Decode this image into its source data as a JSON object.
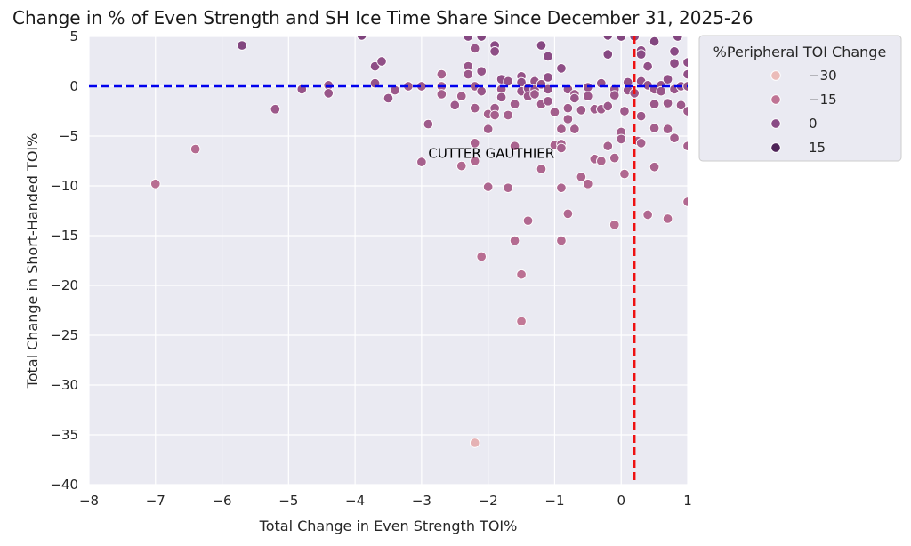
{
  "chart_data": {
    "type": "scatter",
    "title": "Change in % of Even Strength and SH Ice Time Share Since December 31, 2025-26",
    "xlabel": "Total Change in Even Strength TOI%",
    "ylabel": "Total Change in Short-Handed TOI%",
    "xlim": [
      -8,
      1
    ],
    "ylim": [
      -40,
      5
    ],
    "xticks": [
      -8,
      -7,
      -6,
      -5,
      -4,
      -3,
      -2,
      -1,
      0,
      1
    ],
    "yticks": [
      5,
      0,
      -5,
      -10,
      -15,
      -20,
      -25,
      -30,
      -35,
      -40
    ],
    "xtick_labels": [
      "−8",
      "−7",
      "−6",
      "−5",
      "−4",
      "−3",
      "−2",
      "−1",
      "0",
      "1"
    ],
    "ytick_labels": [
      "5",
      "0",
      "−5",
      "−10",
      "−15",
      "−20",
      "−25",
      "−30",
      "−35",
      "−40"
    ],
    "grid": true,
    "hline": {
      "y": 0,
      "color": "#0000ee",
      "style": "dashed"
    },
    "vline": {
      "x": 0.2,
      "color": "#ee1111",
      "style": "dashed"
    },
    "annotation": {
      "text": "CUTTER GAUTHIER",
      "x": -2.9,
      "y": -7.2
    },
    "legend": {
      "title": "%Peripheral TOI Change",
      "placement": "right-outside",
      "entries": [
        {
          "label": "−30",
          "value": -30
        },
        {
          "label": "−15",
          "value": -15
        },
        {
          "label": "0",
          "value": 0
        },
        {
          "label": "15",
          "value": 15
        }
      ]
    },
    "hue_range": [
      -30,
      15
    ],
    "points": [
      [
        -7.0,
        -9.8,
        -13
      ],
      [
        -6.4,
        -6.3,
        -12
      ],
      [
        -5.7,
        4.1,
        2
      ],
      [
        -5.2,
        -2.3,
        -5
      ],
      [
        -4.8,
        -0.3,
        -3
      ],
      [
        -4.4,
        0.1,
        -4
      ],
      [
        -4.4,
        -0.7,
        -4
      ],
      [
        -3.9,
        5.1,
        3
      ],
      [
        -3.7,
        2.0,
        -1
      ],
      [
        -3.6,
        2.5,
        -2
      ],
      [
        -3.7,
        0.3,
        -3
      ],
      [
        -3.5,
        -1.2,
        -4
      ],
      [
        -3.4,
        -0.4,
        -5
      ],
      [
        -3.2,
        0.0,
        -6
      ],
      [
        -3.0,
        0.0,
        -5
      ],
      [
        -2.9,
        -3.8,
        -6
      ],
      [
        -3.0,
        -7.6,
        -8
      ],
      [
        -2.7,
        1.2,
        -8
      ],
      [
        -2.7,
        0.0,
        -9
      ],
      [
        -2.7,
        -0.8,
        -7
      ],
      [
        -2.5,
        -1.9,
        -6
      ],
      [
        -2.4,
        -1.0,
        -7
      ],
      [
        -2.4,
        -8.0,
        -11
      ],
      [
        -2.3,
        5.0,
        1
      ],
      [
        -2.3,
        2.0,
        -4
      ],
      [
        -2.3,
        1.2,
        -5
      ],
      [
        -2.2,
        3.8,
        -4
      ],
      [
        -2.2,
        0.0,
        -6
      ],
      [
        -2.2,
        -2.2,
        -7
      ],
      [
        -2.2,
        -5.7,
        -9
      ],
      [
        -2.2,
        -7.5,
        -11
      ],
      [
        -2.1,
        1.5,
        -3
      ],
      [
        -2.1,
        -0.5,
        -4
      ],
      [
        -2.1,
        5.0,
        2
      ],
      [
        -2.0,
        -2.8,
        -8
      ],
      [
        -2.0,
        -4.3,
        -7
      ],
      [
        -2.0,
        -10.1,
        -10
      ],
      [
        -1.9,
        4.1,
        0
      ],
      [
        -1.9,
        3.5,
        -1
      ],
      [
        -1.9,
        -2.2,
        -6
      ],
      [
        -1.9,
        -2.9,
        -8
      ],
      [
        -1.8,
        0.7,
        -2
      ],
      [
        -1.8,
        -0.3,
        -5
      ],
      [
        -1.8,
        -1.1,
        -4
      ],
      [
        -1.7,
        -2.9,
        -8
      ],
      [
        -1.7,
        -10.2,
        -10
      ],
      [
        -1.7,
        0.5,
        -3
      ],
      [
        -1.6,
        -1.8,
        -7
      ],
      [
        -1.6,
        -6.0,
        -9
      ],
      [
        -1.6,
        -15.5,
        -12
      ],
      [
        -1.5,
        1.0,
        -3
      ],
      [
        -1.5,
        0.4,
        -2
      ],
      [
        -1.5,
        -0.5,
        -4
      ],
      [
        -1.5,
        -18.9,
        -14
      ],
      [
        -1.5,
        -23.6,
        -16
      ],
      [
        -1.4,
        -0.2,
        -2
      ],
      [
        -1.4,
        -1.0,
        -5
      ],
      [
        -1.4,
        -13.5,
        -11
      ],
      [
        -1.3,
        0.5,
        -3
      ],
      [
        -1.3,
        -0.3,
        -4
      ],
      [
        -1.3,
        -0.8,
        -6
      ],
      [
        -1.2,
        4.1,
        1
      ],
      [
        -1.2,
        0.2,
        -4
      ],
      [
        -1.2,
        -1.8,
        -6
      ],
      [
        -1.2,
        -8.3,
        -10
      ],
      [
        -1.1,
        3.0,
        0
      ],
      [
        -1.1,
        0.9,
        -2
      ],
      [
        -1.1,
        -0.3,
        -3
      ],
      [
        -1.1,
        -1.5,
        -5
      ],
      [
        -1.0,
        -2.6,
        -7
      ],
      [
        -1.0,
        -5.9,
        -9
      ],
      [
        -0.9,
        1.8,
        -1
      ],
      [
        -0.9,
        -4.3,
        -7
      ],
      [
        -0.9,
        -5.8,
        -8
      ],
      [
        -0.9,
        -6.2,
        -8
      ],
      [
        -0.9,
        -10.2,
        -10
      ],
      [
        -0.9,
        -15.5,
        -12
      ],
      [
        -0.8,
        -0.3,
        -4
      ],
      [
        -0.8,
        -2.2,
        -6
      ],
      [
        -0.8,
        -3.3,
        -7
      ],
      [
        -0.8,
        -12.8,
        -11
      ],
      [
        -0.7,
        -0.8,
        -5
      ],
      [
        -0.7,
        -1.2,
        -4
      ],
      [
        -0.7,
        -4.3,
        -7
      ],
      [
        -0.6,
        -2.4,
        -6
      ],
      [
        -0.6,
        -9.1,
        -10
      ],
      [
        -0.5,
        -9.8,
        -11
      ],
      [
        -0.5,
        -0.1,
        -3
      ],
      [
        -0.5,
        -1.0,
        -5
      ],
      [
        -0.4,
        -2.3,
        -6
      ],
      [
        -0.4,
        -7.3,
        -9
      ],
      [
        -0.3,
        -2.3,
        -6
      ],
      [
        -0.3,
        -7.5,
        -10
      ],
      [
        -0.3,
        0.3,
        -3
      ],
      [
        -0.2,
        -2.0,
        -5
      ],
      [
        -0.2,
        -6.0,
        -8
      ],
      [
        -0.2,
        5.1,
        3
      ],
      [
        -0.2,
        3.2,
        1
      ],
      [
        -0.1,
        -0.3,
        -4
      ],
      [
        -0.1,
        -0.9,
        -5
      ],
      [
        -0.1,
        -7.2,
        -9
      ],
      [
        -0.1,
        -13.9,
        -13
      ],
      [
        0.0,
        5.0,
        2
      ],
      [
        0.0,
        -4.6,
        -7
      ],
      [
        0.0,
        -5.3,
        -7
      ],
      [
        0.05,
        -2.5,
        -6
      ],
      [
        0.05,
        -8.8,
        -11
      ],
      [
        0.1,
        -0.4,
        -4
      ],
      [
        0.1,
        0.4,
        -3
      ],
      [
        0.2,
        5.0,
        0
      ],
      [
        0.2,
        -0.7,
        -5
      ],
      [
        0.25,
        -5.5,
        -8
      ],
      [
        0.3,
        3.6,
        -1
      ],
      [
        0.3,
        3.2,
        0
      ],
      [
        0.3,
        0.5,
        -3
      ],
      [
        0.3,
        -3.0,
        -5
      ],
      [
        0.3,
        -5.7,
        -8
      ],
      [
        0.4,
        -12.9,
        -11
      ],
      [
        0.4,
        2.0,
        -2
      ],
      [
        0.4,
        0.1,
        -3
      ],
      [
        0.5,
        -0.3,
        -4
      ],
      [
        0.5,
        -1.8,
        -5
      ],
      [
        0.5,
        -4.2,
        -7
      ],
      [
        0.5,
        -8.1,
        -9
      ],
      [
        0.5,
        4.5,
        2
      ],
      [
        0.6,
        0.1,
        -3
      ],
      [
        0.6,
        -0.5,
        -4
      ],
      [
        0.7,
        0.7,
        -2
      ],
      [
        0.7,
        -1.7,
        -5
      ],
      [
        0.7,
        -4.3,
        -7
      ],
      [
        0.7,
        -13.3,
        -12
      ],
      [
        0.8,
        3.5,
        0
      ],
      [
        0.8,
        2.3,
        -1
      ],
      [
        0.8,
        -0.3,
        -4
      ],
      [
        0.8,
        -5.2,
        -7
      ],
      [
        0.85,
        5.0,
        2
      ],
      [
        0.9,
        0.0,
        -3
      ],
      [
        0.9,
        -1.9,
        -5
      ],
      [
        1.0,
        2.4,
        -1
      ],
      [
        1.0,
        1.2,
        -2
      ],
      [
        1.0,
        0.0,
        -3
      ],
      [
        1.0,
        -2.5,
        -6
      ],
      [
        1.0,
        -6.0,
        -8
      ],
      [
        1.0,
        -11.6,
        -11
      ],
      [
        -2.2,
        -35.8,
        -28
      ],
      [
        -2.1,
        -17.1,
        -13
      ]
    ]
  }
}
